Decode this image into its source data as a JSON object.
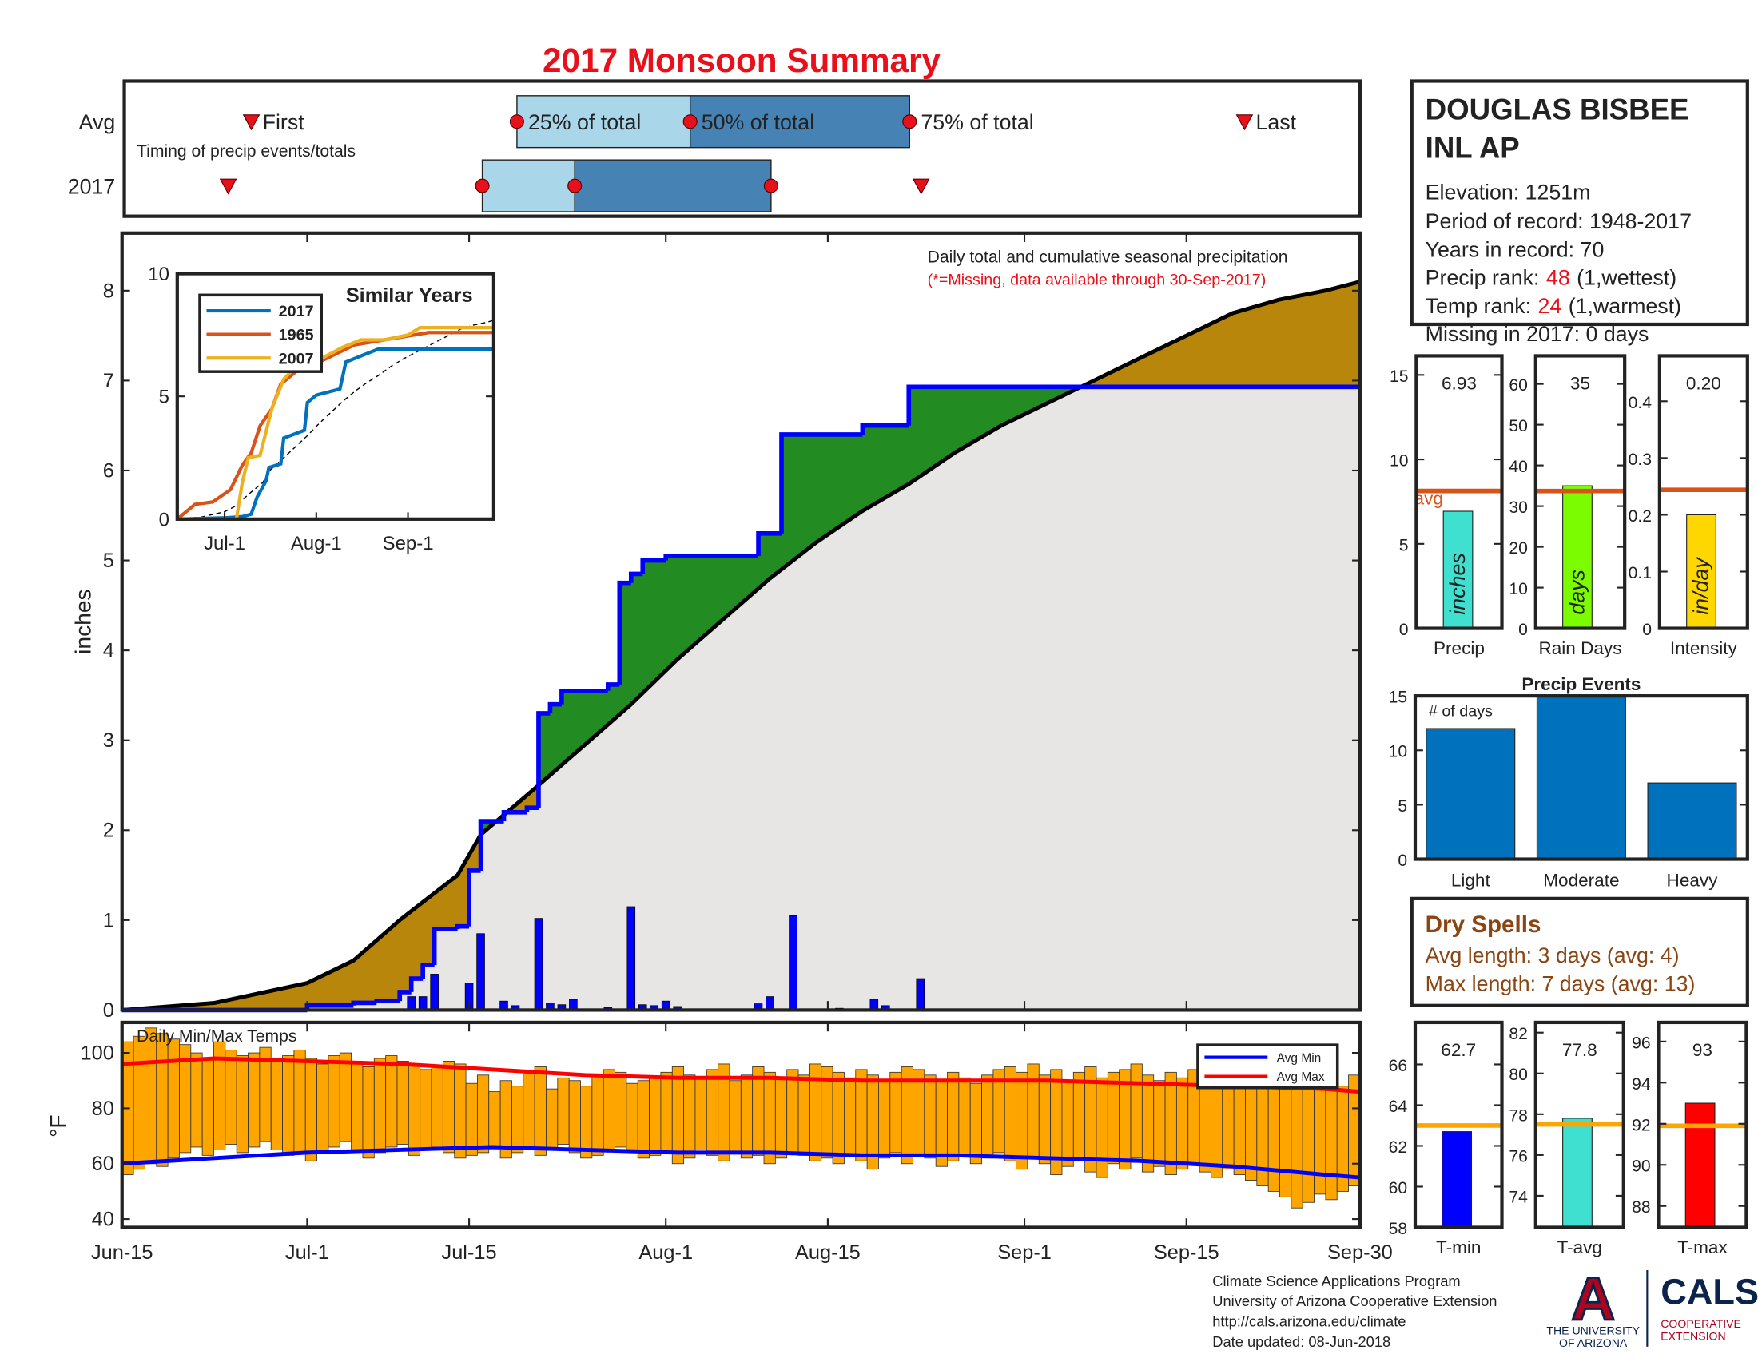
{
  "title": "2017 Monsoon Summary",
  "chart_data": [
    {
      "type": "timing",
      "annotation": "Timing of precip events/totals",
      "event_labels": [
        "First",
        "25% of total",
        "50% of total",
        "75% of total",
        "Last"
      ],
      "series": [
        {
          "name": "Avg",
          "values": [
            11,
            34,
            49,
            68,
            97
          ]
        },
        {
          "name": "2017",
          "values": [
            9,
            31,
            39,
            56,
            69
          ]
        }
      ],
      "xlim": [
        0,
        107
      ],
      "colors": [
        "#a9d6e9",
        "#4682b4"
      ]
    },
    {
      "type": "cumulative",
      "annotation": "Daily total and cumulative seasonal precipitation",
      "subtitle": "(*=Missing, data available through 30-Sep-2017)",
      "ylabel": "inches",
      "xlim": [
        0,
        107
      ],
      "ylim": [
        0,
        8.64
      ],
      "yticks": [
        0,
        1,
        2,
        3,
        4,
        5,
        6,
        7,
        8
      ],
      "observed": {
        "color": "#0000ff",
        "x": [
          0,
          16,
          20,
          22,
          24,
          25,
          26,
          27,
          29,
          30,
          31,
          33,
          35,
          36,
          37,
          38,
          42,
          43,
          44,
          45,
          47,
          55,
          57,
          64,
          68,
          107
        ],
        "values": [
          0,
          0.05,
          0.08,
          0.1,
          0.2,
          0.35,
          0.5,
          0.9,
          0.93,
          1.55,
          2.1,
          2.2,
          2.25,
          3.3,
          3.4,
          3.55,
          3.62,
          4.75,
          4.85,
          5.0,
          5.05,
          5.3,
          6.4,
          6.5,
          6.93,
          6.93
        ]
      },
      "average": {
        "color": "#000000",
        "x": [
          0,
          8,
          16,
          20,
          24,
          29,
          31,
          36,
          40,
          44,
          48,
          52,
          56,
          60,
          64,
          68,
          72,
          76,
          80,
          84,
          88,
          92,
          96,
          100,
          104,
          107
        ],
        "values": [
          0,
          0.08,
          0.3,
          0.55,
          1.0,
          1.5,
          1.95,
          2.5,
          2.95,
          3.4,
          3.9,
          4.35,
          4.8,
          5.2,
          5.55,
          5.85,
          6.2,
          6.5,
          6.75,
          7.0,
          7.25,
          7.5,
          7.75,
          7.9,
          8.0,
          8.1
        ]
      },
      "daily": {
        "color": "#0000ff",
        "x": [
          25,
          26,
          27,
          30,
          31,
          33,
          34,
          36,
          37,
          38,
          39,
          42,
          44,
          45,
          46,
          47,
          48,
          55,
          56,
          58,
          62,
          65,
          66,
          69
        ],
        "values": [
          0.15,
          0.15,
          0.4,
          0.3,
          0.85,
          0.1,
          0.05,
          1.02,
          0.08,
          0.06,
          0.12,
          0.03,
          1.15,
          0.06,
          0.05,
          0.1,
          0.04,
          0.07,
          0.15,
          1.05,
          0.02,
          0.12,
          0.05,
          0.35
        ]
      },
      "above_color": "#228b22",
      "below_color": "#b8860b",
      "fill_color": "#e8e6e4"
    },
    {
      "type": "line",
      "title": "Similar Years",
      "xlim": [
        0,
        107
      ],
      "xticks": [
        {
          "value": 16,
          "label": "Jul-1"
        },
        {
          "value": 47,
          "label": "Aug-1"
        },
        {
          "value": 78,
          "label": "Sep-1"
        }
      ],
      "ylim": [
        0,
        10
      ],
      "yticks": [
        0,
        5,
        10
      ],
      "series": [
        {
          "name": "2017",
          "color": "#0072bd",
          "x": [
            0,
            16,
            22,
            25,
            27,
            30,
            31,
            35,
            36,
            43,
            44,
            47,
            55,
            57,
            68,
            107
          ],
          "values": [
            0,
            0.05,
            0.1,
            0.2,
            0.9,
            1.55,
            2.1,
            2.25,
            3.3,
            3.62,
            4.75,
            5.05,
            5.3,
            6.4,
            6.93,
            6.93
          ]
        },
        {
          "name": "1965",
          "color": "#d95319",
          "x": [
            0,
            6,
            12,
            18,
            22,
            25,
            28,
            32,
            35,
            40,
            48,
            60,
            70,
            85,
            107
          ],
          "values": [
            0,
            0.6,
            0.7,
            1.2,
            2.2,
            2.7,
            3.8,
            4.5,
            5.5,
            6.0,
            6.4,
            7.1,
            7.3,
            7.6,
            7.6
          ]
        },
        {
          "name": "2007",
          "color": "#edb120",
          "x": [
            0,
            20,
            22,
            24,
            28,
            32,
            36,
            40,
            48,
            56,
            62,
            70,
            78,
            82,
            107
          ],
          "values": [
            0,
            0,
            1.5,
            2.5,
            2.6,
            4.5,
            5.7,
            6.2,
            6.5,
            7.0,
            7.3,
            7.3,
            7.5,
            7.8,
            7.8
          ]
        }
      ]
    },
    {
      "type": "single_bar",
      "categories": [
        "Precip"
      ],
      "values": [
        6.93
      ],
      "unit": "inches",
      "avg": 8.13,
      "avg_label": "avg",
      "color": "#40e0d0",
      "avg_color": "#d95319",
      "ylim": [
        0,
        16.13
      ],
      "yticks": [
        0,
        5,
        10,
        15
      ]
    },
    {
      "type": "single_bar",
      "categories": [
        "Rain Days"
      ],
      "values": [
        35
      ],
      "unit": "days",
      "avg": 33.7,
      "color": "#7cfc00",
      "avg_color": "#d95319",
      "ylim": [
        0,
        66.9
      ],
      "yticks": [
        0,
        10,
        20,
        30,
        40,
        50,
        60
      ]
    },
    {
      "type": "single_bar",
      "categories": [
        "Intensity"
      ],
      "values": [
        0.2
      ],
      "value_labels": [
        "0.20"
      ],
      "unit": "in/day",
      "avg": 0.244,
      "color": "#ffd700",
      "avg_color": "#d95319",
      "ylim": [
        0,
        0.48
      ],
      "yticks": [
        0,
        0.1,
        0.2,
        0.3,
        0.4
      ]
    },
    {
      "type": "bar",
      "title": "Precip Events",
      "annotation": "# of days",
      "categories": [
        "Light",
        "Moderate",
        "Heavy"
      ],
      "values": [
        12,
        15,
        7
      ],
      "color": "#0072bd",
      "ylim": [
        0,
        15
      ],
      "yticks": [
        0,
        5,
        10,
        15
      ]
    },
    {
      "type": "range_bar",
      "title": "Daily Min/Max Temps",
      "ylabel": "°F",
      "xlim": [
        0,
        107
      ],
      "xticks": [
        {
          "value": 0,
          "label": "Jun-15"
        },
        {
          "value": 16,
          "label": "Jul-1"
        },
        {
          "value": 30,
          "label": "Jul-15"
        },
        {
          "value": 47,
          "label": "Aug-1"
        },
        {
          "value": 61,
          "label": "Aug-15"
        },
        {
          "value": 78,
          "label": "Sep-1"
        },
        {
          "value": 92,
          "label": "Sep-15"
        },
        {
          "value": 107,
          "label": "Sep-30"
        }
      ],
      "ylim": [
        37,
        111
      ],
      "yticks": [
        40,
        60,
        80,
        100
      ],
      "color": "#ffa500",
      "legend": "upper right",
      "max": [
        104,
        106,
        109,
        107,
        105,
        103,
        100,
        98,
        104,
        101,
        99,
        100,
        102,
        97,
        99,
        101,
        98,
        96,
        99,
        100,
        97,
        95,
        98,
        99,
        97,
        96,
        94,
        95,
        97,
        96,
        89,
        92,
        86,
        90,
        88,
        93,
        95,
        87,
        91,
        90,
        88,
        92,
        94,
        93,
        89,
        90,
        91,
        93,
        95,
        92,
        91,
        94,
        96,
        90,
        92,
        95,
        93,
        91,
        94,
        92,
        96,
        95,
        93,
        91,
        94,
        92,
        90,
        93,
        95,
        94,
        92,
        90,
        93,
        91,
        89,
        92,
        94,
        95,
        93,
        96,
        92,
        94,
        90,
        93,
        95,
        91,
        93,
        94,
        96,
        92,
        90,
        93,
        91,
        94,
        92,
        95,
        93,
        91,
        89,
        92,
        90,
        88,
        91,
        89,
        87,
        90,
        88,
        92
      ],
      "min": [
        56,
        58,
        60,
        59,
        62,
        64,
        66,
        63,
        65,
        67,
        64,
        66,
        68,
        65,
        63,
        64,
        61,
        64,
        66,
        68,
        65,
        62,
        64,
        66,
        67,
        63,
        65,
        66,
        64,
        62,
        63,
        64,
        65,
        62,
        64,
        66,
        63,
        65,
        67,
        64,
        62,
        63,
        65,
        66,
        64,
        62,
        63,
        64,
        60,
        62,
        65,
        63,
        61,
        64,
        62,
        63,
        60,
        62,
        64,
        63,
        61,
        62,
        60,
        63,
        61,
        58,
        62,
        64,
        60,
        63,
        62,
        59,
        61,
        63,
        60,
        62,
        64,
        61,
        58,
        62,
        60,
        56,
        59,
        61,
        57,
        55,
        60,
        58,
        62,
        57,
        59,
        56,
        58,
        60,
        57,
        55,
        58,
        56,
        54,
        52,
        50,
        48,
        44,
        46,
        49,
        47,
        50,
        52
      ],
      "series": [
        {
          "name": "Avg Min",
          "color": "#0000ff",
          "x": [
            0,
            8,
            16,
            24,
            32,
            40,
            48,
            56,
            64,
            72,
            80,
            88,
            96,
            104,
            107
          ],
          "values": [
            60,
            62,
            64,
            65,
            66,
            65,
            64,
            64,
            63,
            63,
            62,
            61,
            59,
            56,
            55
          ]
        },
        {
          "name": "Avg Max",
          "color": "#ff0000",
          "x": [
            0,
            8,
            16,
            24,
            32,
            40,
            48,
            56,
            64,
            72,
            80,
            88,
            96,
            104,
            107
          ],
          "values": [
            96,
            98,
            97,
            96,
            94,
            92,
            91,
            91,
            90,
            90,
            90,
            89,
            88,
            87,
            86
          ]
        }
      ]
    },
    {
      "type": "single_bar",
      "categories": [
        "T-min"
      ],
      "values": [
        62.7
      ],
      "avg": 63.0,
      "color": "#0000ff",
      "avg_color": "#ffa500",
      "ylim": [
        58,
        68.06
      ],
      "yticks": [
        58,
        60,
        62,
        64,
        66
      ]
    },
    {
      "type": "single_bar",
      "categories": [
        "T-avg"
      ],
      "values": [
        77.8
      ],
      "avg": 77.5,
      "color": "#40e0d0",
      "avg_color": "#ffa500",
      "ylim": [
        72.45,
        82.5
      ],
      "yticks": [
        74,
        76,
        78,
        80,
        82
      ]
    },
    {
      "type": "single_bar",
      "categories": [
        "T-max"
      ],
      "values": [
        93
      ],
      "avg": 91.9,
      "color": "#ff0000",
      "avg_color": "#ffa500",
      "ylim": [
        86.96,
        96.93
      ],
      "yticks": [
        88,
        90,
        92,
        94,
        96
      ]
    }
  ],
  "station": {
    "name_lines": [
      "DOUGLAS BISBEE",
      "INL AP"
    ],
    "elevation": "Elevation: 1251m",
    "period": "Period of record: 1948-2017",
    "years": "Years in record: 70",
    "precip_rank": {
      "label": "Precip rank:",
      "value": 48,
      "note": "(1,wettest)"
    },
    "temp_rank": {
      "label": "Temp rank:",
      "value": 24,
      "note": "(1,warmest)"
    },
    "missing": "Missing in 2017: 0 days"
  },
  "dry_spells": {
    "title": "Dry Spells",
    "avg_length": "Avg length: 3 days (avg: 4)",
    "max_length": "Max length: 7 days (avg: 13)"
  },
  "footer": [
    "Climate Science Applications Program",
    "University of Arizona Cooperative Extension",
    "http://cals.arizona.edu/climate",
    " Date updated: 08-Jun-2018"
  ],
  "logos": {
    "ua_letter": "A",
    "ua_name": [
      "THE UNIVERSITY",
      "OF ARIZONA"
    ],
    "cals": "CALS",
    "cals_sub": [
      "COOPERATIVE",
      "EXTENSION"
    ]
  }
}
